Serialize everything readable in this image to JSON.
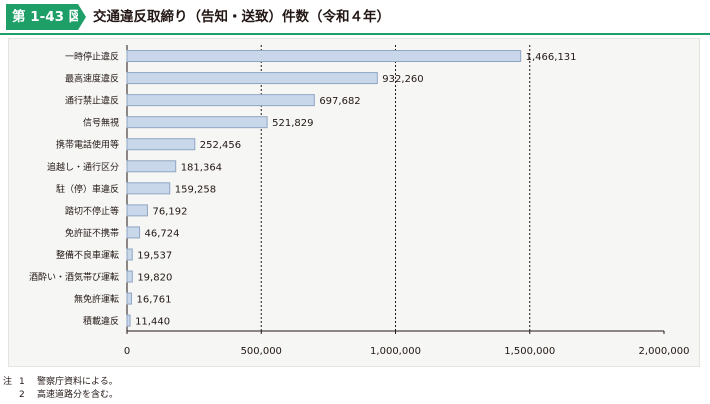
{
  "header": {
    "figure_number": "第 1-43 図",
    "title": "交通違反取締り（告知・送致）件数（令和４年）"
  },
  "colors": {
    "accent": "#1e9f68",
    "bar_fill": "#c9d7ea",
    "bar_stroke": "#8fa6c4",
    "grid": "#231815"
  },
  "chart_data": {
    "type": "bar",
    "orientation": "horizontal",
    "title": "交通違反取締り（告知・送致）件数（令和４年）",
    "categories": [
      "一時停止違反",
      "最高速度違反",
      "通行禁止違反",
      "信号無視",
      "携帯電話使用等",
      "追越し・通行区分",
      "駐（停）車違反",
      "踏切不停止等",
      "免許証不携帯",
      "整備不良車運転",
      "酒酔い・酒気帯び運転",
      "無免許運転",
      "積載違反"
    ],
    "values": [
      1466131,
      932260,
      697682,
      521829,
      252456,
      181364,
      159258,
      76192,
      46724,
      19537,
      19820,
      16761,
      11440
    ],
    "value_labels": [
      "1,466,131",
      "932,260",
      "697,682",
      "521,829",
      "252,456",
      "181,364",
      "159,258",
      "76,192",
      "46,724",
      "19,537",
      "19,820",
      "16,761",
      "11,440"
    ],
    "xlim": [
      0,
      2000000
    ],
    "xticks": [
      0,
      500000,
      1000000,
      1500000,
      2000000
    ],
    "xtick_labels": [
      "0",
      "500,000",
      "1,000,000",
      "1,500,000",
      "2,000,000"
    ],
    "gridlines": [
      500000,
      1000000,
      1500000
    ],
    "xlabel": "",
    "ylabel": ""
  },
  "notes": {
    "prefix": "注",
    "items": [
      {
        "number": "1",
        "text": "警察庁資料による。"
      },
      {
        "number": "2",
        "text": "高速道路分を含む。"
      }
    ]
  }
}
